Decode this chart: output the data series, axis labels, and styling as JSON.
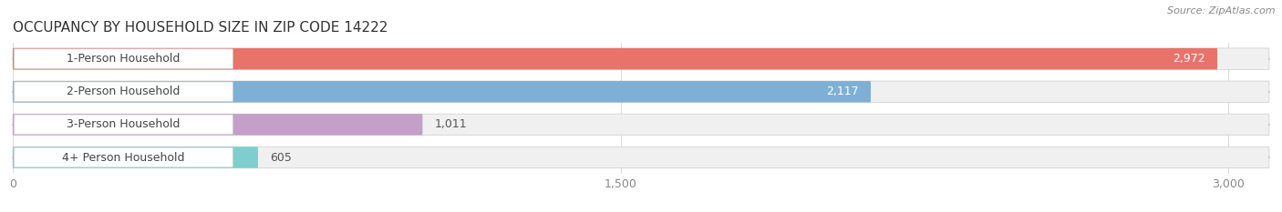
{
  "title": "OCCUPANCY BY HOUSEHOLD SIZE IN ZIP CODE 14222",
  "source": "Source: ZipAtlas.com",
  "categories": [
    "1-Person Household",
    "2-Person Household",
    "3-Person Household",
    "4+ Person Household"
  ],
  "values": [
    2972,
    2117,
    1011,
    605
  ],
  "bar_colors": [
    "#E8736B",
    "#7EB0D5",
    "#C4A0C8",
    "#7ECECE"
  ],
  "label_colors": [
    "#ffffff",
    "#ffffff",
    "#555555",
    "#555555"
  ],
  "xlim": [
    0,
    3100
  ],
  "xticks": [
    0,
    1500,
    3000
  ],
  "background_color": "#ffffff",
  "title_fontsize": 11,
  "source_fontsize": 8,
  "tick_fontsize": 9,
  "label_fontsize": 9,
  "value_fontsize": 9,
  "bar_height": 0.65,
  "figsize": [
    14.06,
    2.33
  ],
  "dpi": 100
}
